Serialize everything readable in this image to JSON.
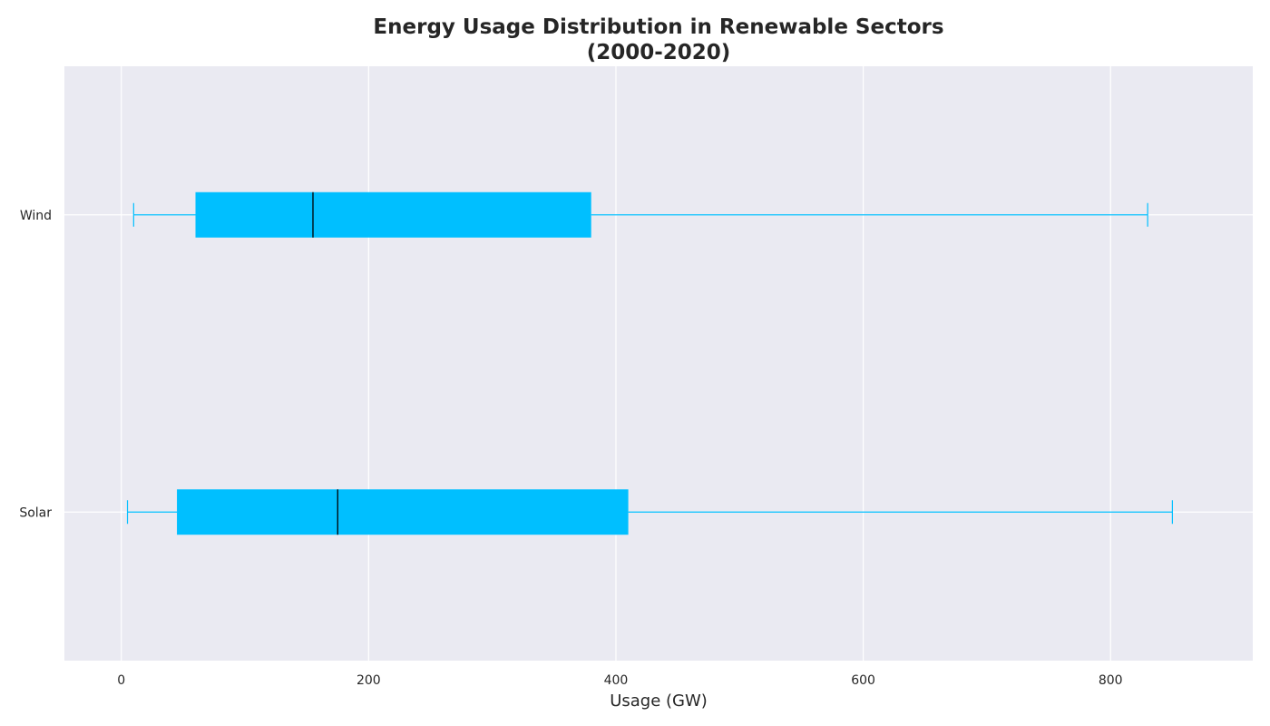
{
  "chart_data": {
    "type": "boxplot",
    "orientation": "horizontal",
    "title_lines": [
      "Energy Usage Distribution in Renewable Sectors",
      "(2000-2020)"
    ],
    "xlabel": "Usage (GW)",
    "ylabel": "",
    "xlim": [
      -46,
      915
    ],
    "xticks": [
      0,
      200,
      400,
      600,
      800
    ],
    "grid": true,
    "categories": [
      "Solar",
      "Wind"
    ],
    "boxes": [
      {
        "category": "Solar",
        "whisker_low": 5,
        "q1": 45,
        "median": 175,
        "q3": 410,
        "whisker_high": 850
      },
      {
        "category": "Wind",
        "whisker_low": 10,
        "q1": 60,
        "median": 155,
        "q3": 380,
        "whisker_high": 830
      }
    ],
    "colors": {
      "box_fill": "#00bfff",
      "whisker": "#00bfff",
      "median_line": "#000000",
      "plot_background": "#eaeaf2",
      "grid": "#ffffff",
      "text": "#262626"
    }
  }
}
